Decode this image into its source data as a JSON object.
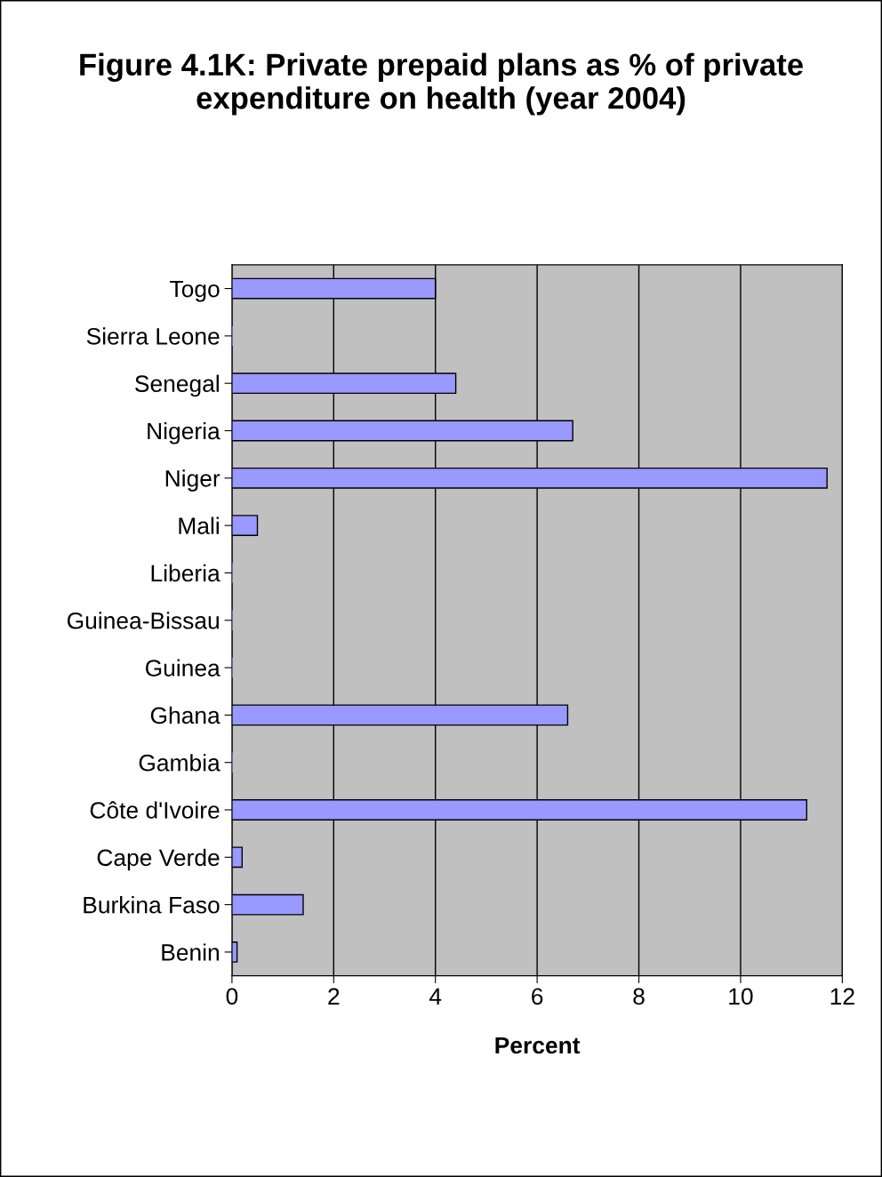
{
  "chart_data": {
    "type": "bar",
    "orientation": "horizontal",
    "title": "Figure 4.1K: Private prepaid plans as % of private expenditure on health (year 2004)",
    "xlabel": "Percent",
    "categories": [
      "Togo",
      "Sierra Leone",
      "Senegal",
      "Nigeria",
      "Niger",
      "Mali",
      "Liberia",
      "Guinea-Bissau",
      "Guinea",
      "Ghana",
      "Gambia",
      "Côte d'Ivoire",
      "Cape Verde",
      "Burkina Faso",
      "Benin"
    ],
    "values": [
      4.0,
      0,
      4.4,
      6.7,
      11.7,
      0.5,
      0,
      0,
      0,
      6.6,
      0,
      11.3,
      0.2,
      1.4,
      0.1
    ],
    "color": "#9999ff",
    "xlim": [
      0,
      12
    ],
    "xticks": [
      0,
      2,
      4,
      6,
      8,
      10,
      12
    ],
    "grid": "x"
  }
}
